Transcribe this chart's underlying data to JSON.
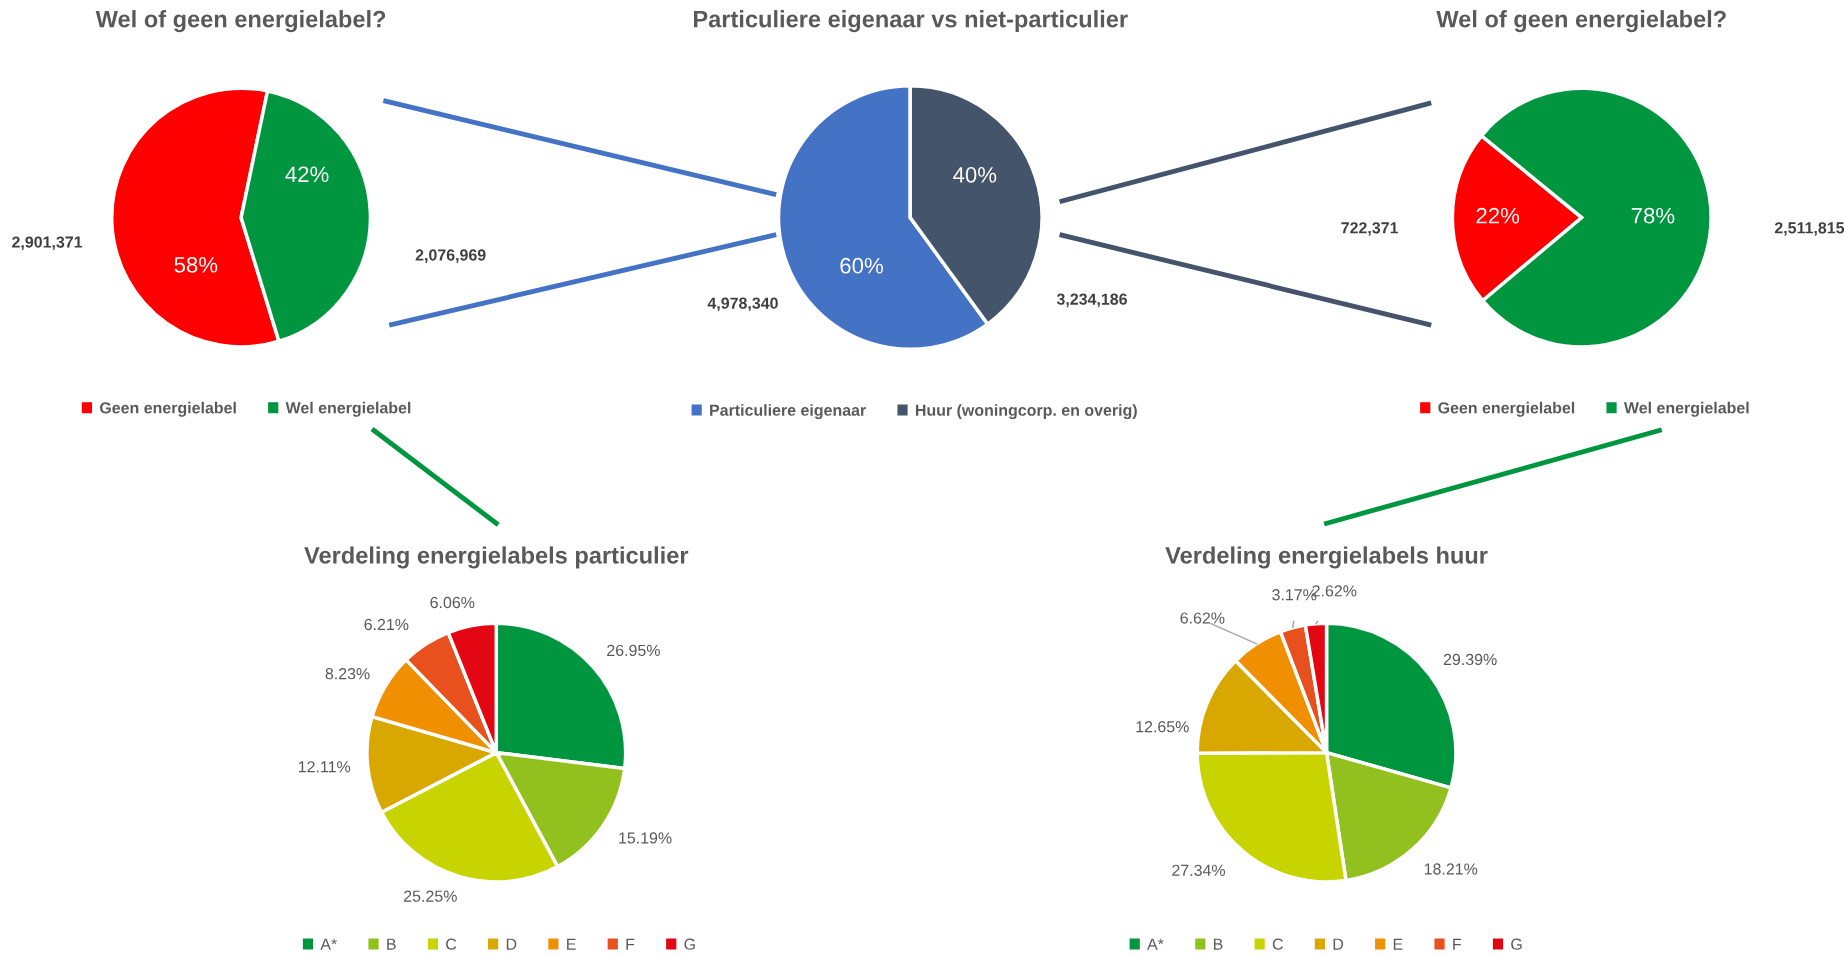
{
  "chart_data": [
    {
      "type": "pie",
      "title": "Wel of geen energielabel?",
      "categories": [
        "Geen energielabel",
        "Wel energielabel"
      ],
      "values": [
        58,
        42
      ],
      "colors": [
        "#ff0000",
        "#00963f"
      ],
      "value_labels": [
        "58%",
        "42%"
      ],
      "annotations": [
        "2,901,371",
        "2,076,969"
      ],
      "legend": "bottom"
    },
    {
      "type": "pie",
      "title": "Particuliere eigenaar vs niet-particulier",
      "categories": [
        "Particuliere eigenaar",
        "Huur (woningcorp. en overig)"
      ],
      "values": [
        60,
        40
      ],
      "colors": [
        "#4472c4",
        "#44546a"
      ],
      "value_labels": [
        "60%",
        "40%"
      ],
      "annotations": [
        "4,978,340",
        "3,234,186"
      ],
      "legend": "bottom"
    },
    {
      "type": "pie",
      "title": "Wel of geen energielabel?",
      "categories": [
        "Geen energielabel",
        "Wel energielabel"
      ],
      "values": [
        22,
        78
      ],
      "colors": [
        "#ff0000",
        "#00963f"
      ],
      "value_labels": [
        "22%",
        "78%"
      ],
      "annotations": [
        "722,371",
        "2,511,815"
      ],
      "legend": "bottom"
    },
    {
      "type": "pie",
      "title": "Verdeling energielabels particulier",
      "categories": [
        "A*",
        "B",
        "C",
        "D",
        "E",
        "F",
        "G"
      ],
      "values": [
        26.95,
        15.19,
        25.25,
        12.11,
        8.23,
        6.21,
        6.06
      ],
      "colors": [
        "#00963f",
        "#92c01f",
        "#c8d400",
        "#d8a800",
        "#f09000",
        "#e8501e",
        "#e30613"
      ],
      "value_labels": [
        "26.95%",
        "15.19%",
        "25.25%",
        "12.11%",
        "8.23%",
        "6.21%",
        "6.06%"
      ],
      "legend": "bottom"
    },
    {
      "type": "pie",
      "title": "Verdeling energielabels huur",
      "categories": [
        "A*",
        "B",
        "C",
        "D",
        "E",
        "F",
        "G"
      ],
      "values": [
        29.39,
        18.21,
        27.34,
        12.65,
        6.62,
        3.17,
        2.62
      ],
      "colors": [
        "#00963f",
        "#92c01f",
        "#c8d400",
        "#d8a800",
        "#f09000",
        "#e8501e",
        "#e30613"
      ],
      "value_labels": [
        "29.39%",
        "18.21%",
        "27.34%",
        "12.65%",
        "6.62%",
        "3.17%",
        "2.62%"
      ],
      "legend": "bottom"
    }
  ]
}
